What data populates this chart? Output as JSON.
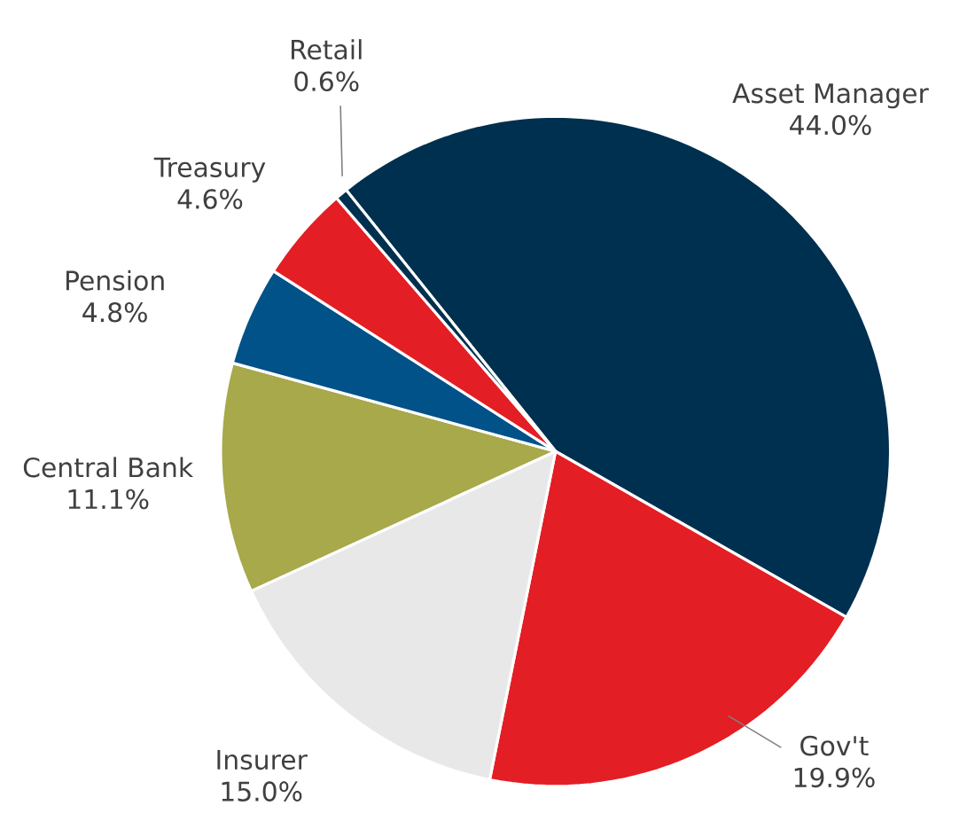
{
  "chart_data": {
    "type": "pie",
    "categories": [
      "Asset Manager",
      "Gov't",
      "Insurer",
      "Central Bank",
      "Pension",
      "Treasury",
      "Retail"
    ],
    "values": [
      44.0,
      19.9,
      15.0,
      11.1,
      4.8,
      4.6,
      0.6
    ],
    "value_labels": [
      "44.0%",
      "19.9%",
      "15.0%",
      "11.1%",
      "4.8%",
      "4.6%",
      "0.6%"
    ],
    "colors": [
      "#00304f",
      "#e31e24",
      "#e8e8e8",
      "#a7a94a",
      "#005288",
      "#e31e24",
      "#00304f"
    ]
  }
}
